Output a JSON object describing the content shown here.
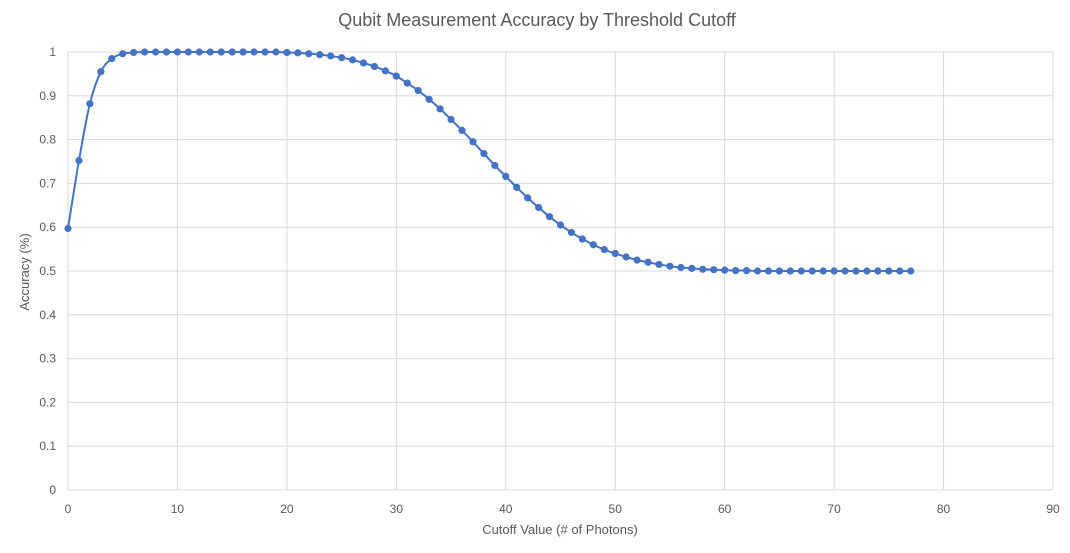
{
  "chart_data": {
    "type": "line",
    "title": "Qubit Measurement Accuracy by Threshold Cutoff",
    "xlabel": "Cutoff Value (# of Photons)",
    "ylabel": "Accuracy (%)",
    "xlim": [
      0,
      90
    ],
    "ylim": [
      0,
      1
    ],
    "xticks": [
      "0",
      "10",
      "20",
      "30",
      "40",
      "50",
      "60",
      "70",
      "80",
      "90"
    ],
    "yticks": [
      "0",
      "0.1",
      "0.2",
      "0.3",
      "0.4",
      "0.5",
      "0.6",
      "0.7",
      "0.8",
      "0.9",
      "1"
    ],
    "grid": true,
    "legend": "none",
    "series_color": "#4472c4",
    "series": [
      {
        "x": [
          0,
          1,
          2,
          3,
          4,
          5,
          6,
          7,
          8,
          9,
          10,
          11,
          12,
          13,
          14,
          15,
          16,
          17,
          18,
          19,
          20,
          21,
          22,
          23,
          24,
          25,
          26,
          27,
          28,
          29,
          30,
          31,
          32,
          33,
          34,
          35,
          36,
          37,
          38,
          39,
          40,
          41,
          42,
          43,
          44,
          45,
          46,
          47,
          48,
          49,
          50,
          51,
          52,
          53,
          54,
          55,
          56,
          57,
          58,
          59,
          60,
          61,
          62,
          63,
          64,
          65,
          66,
          67,
          68,
          69,
          70,
          71,
          72,
          73,
          74,
          75,
          76,
          77
        ],
        "values": [
          0.597,
          0.752,
          0.882,
          0.955,
          0.985,
          0.996,
          0.999,
          1.0,
          1.0,
          1.0,
          1.0,
          1.0,
          1.0,
          1.0,
          1.0,
          1.0,
          1.0,
          1.0,
          1.0,
          1.0,
          0.999,
          0.998,
          0.996,
          0.994,
          0.991,
          0.987,
          0.982,
          0.975,
          0.967,
          0.957,
          0.945,
          0.929,
          0.912,
          0.892,
          0.87,
          0.846,
          0.821,
          0.795,
          0.768,
          0.741,
          0.716,
          0.691,
          0.667,
          0.645,
          0.624,
          0.605,
          0.588,
          0.573,
          0.56,
          0.549,
          0.54,
          0.532,
          0.525,
          0.52,
          0.515,
          0.511,
          0.508,
          0.506,
          0.504,
          0.503,
          0.502,
          0.501,
          0.501,
          0.5,
          0.5,
          0.5,
          0.5,
          0.5,
          0.5,
          0.5,
          0.5,
          0.5,
          0.5,
          0.5,
          0.5,
          0.5,
          0.5,
          0.5
        ]
      }
    ]
  }
}
